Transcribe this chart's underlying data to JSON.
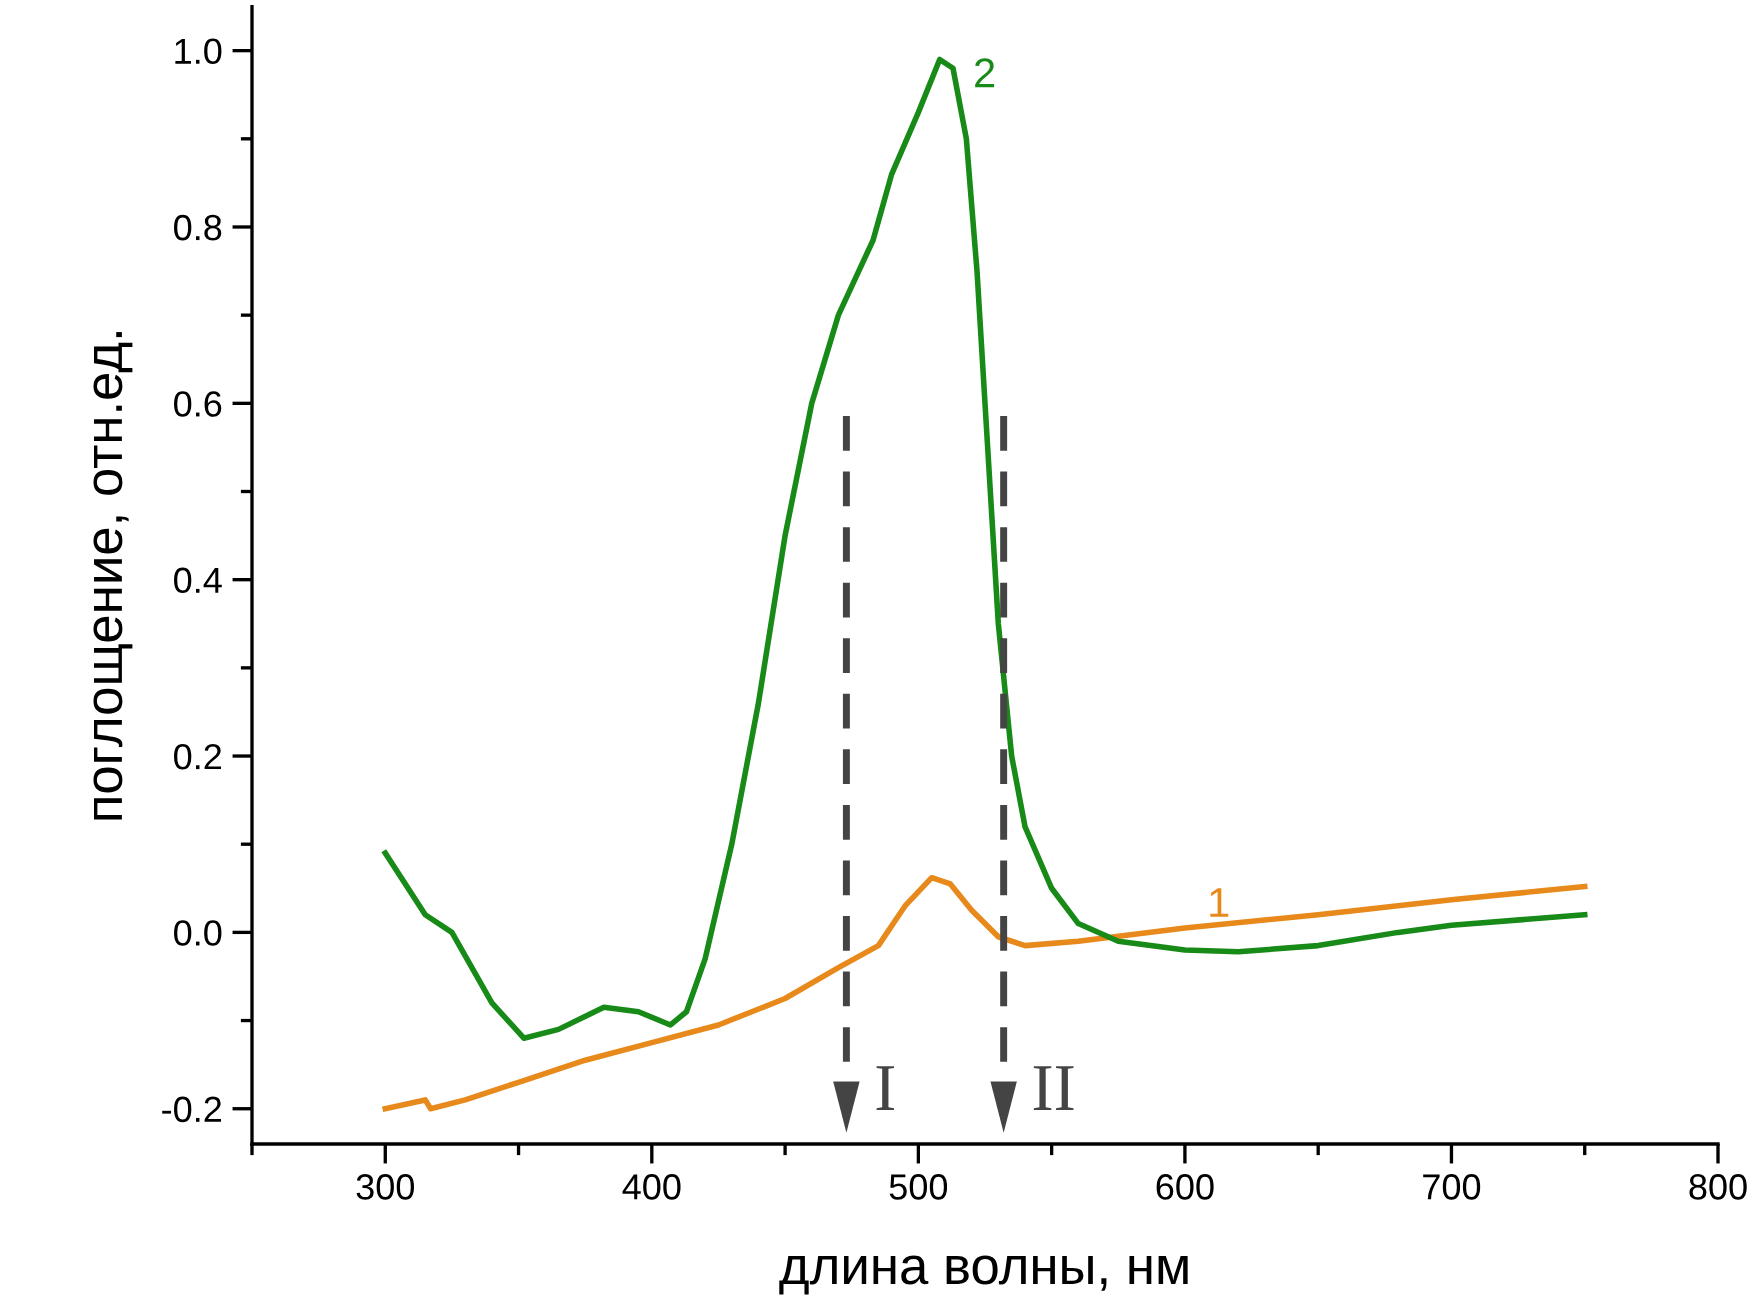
{
  "chart_data": {
    "type": "line",
    "xlabel": "длина волны, нм",
    "ylabel": "поглощение, отн.ед.",
    "xlim": [
      250,
      800
    ],
    "xticks": [
      300,
      400,
      500,
      600,
      700,
      800
    ],
    "ylim": [
      -0.24,
      1.05
    ],
    "yticks": [
      {
        "value": -0.2,
        "label": "-0.2"
      },
      {
        "value": 0,
        "label": "0.0"
      },
      0.2,
      0.4,
      0.6,
      0.8,
      {
        "value": 1,
        "label": "1.0"
      }
    ],
    "grid": false,
    "legend": false,
    "line_style": "solid",
    "marker": "none",
    "series": [
      {
        "name": "1",
        "color": "#e8891c",
        "x": [
          300,
          315,
          317,
          330,
          350,
          375,
          400,
          425,
          450,
          470,
          485,
          495,
          505,
          512,
          520,
          530,
          540,
          560,
          600,
          650,
          700,
          750
        ],
        "values": [
          -0.2,
          -0.19,
          -0.2,
          -0.19,
          -0.17,
          -0.145,
          -0.125,
          -0.105,
          -0.075,
          -0.04,
          -0.015,
          0.03,
          0.062,
          0.055,
          0.025,
          -0.005,
          -0.015,
          -0.01,
          0.005,
          0.02,
          0.037,
          0.052
        ]
      },
      {
        "name": "2",
        "color": "#178a17",
        "x": [
          300,
          315,
          325,
          340,
          352,
          365,
          382,
          395,
          407,
          413,
          420,
          430,
          440,
          450,
          460,
          470,
          483,
          490,
          500,
          508,
          513,
          518,
          522,
          526,
          530,
          535,
          540,
          550,
          560,
          575,
          600,
          620,
          650,
          680,
          700,
          750
        ],
        "values": [
          0.09,
          0.02,
          0.0,
          -0.08,
          -0.12,
          -0.11,
          -0.085,
          -0.09,
          -0.105,
          -0.09,
          -0.03,
          0.1,
          0.26,
          0.45,
          0.6,
          0.7,
          0.785,
          0.86,
          0.93,
          0.99,
          0.98,
          0.9,
          0.75,
          0.55,
          0.35,
          0.2,
          0.12,
          0.05,
          0.01,
          -0.01,
          -0.02,
          -0.022,
          -0.015,
          0.0,
          0.008,
          0.02
        ]
      }
    ],
    "ref_lines": [
      {
        "axis": "x",
        "value": 473,
        "label": "I",
        "color": "#444444",
        "line_style": "dashed"
      },
      {
        "axis": "x",
        "value": 532,
        "label": "II",
        "color": "#444444",
        "line_style": "dashed"
      }
    ]
  }
}
